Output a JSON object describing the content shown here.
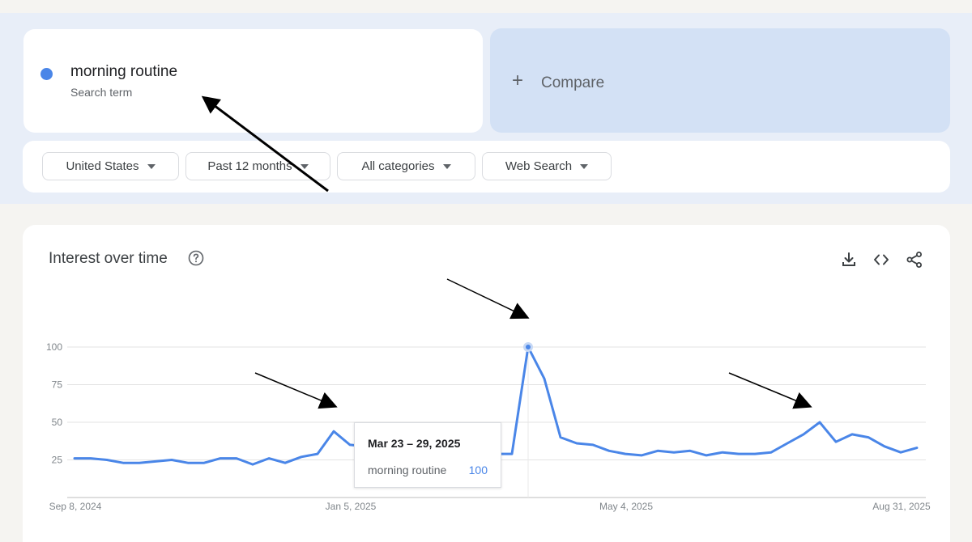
{
  "search": {
    "term": "morning routine",
    "term_type": "Search term",
    "series_color": "#4a86e8"
  },
  "compare": {
    "label": "Compare",
    "icon": "plus-icon"
  },
  "filters": {
    "region": "United States",
    "period": "Past 12 months",
    "category": "All categories",
    "property": "Web Search"
  },
  "panel": {
    "title": "Interest over time",
    "icons": [
      "help-icon",
      "download-icon",
      "embed-icon",
      "share-icon"
    ]
  },
  "tooltip": {
    "date": "Mar 23 – 29, 2025",
    "series": "morning routine",
    "value": "100"
  },
  "chart_data": {
    "type": "line",
    "ylim": [
      0,
      100
    ],
    "y_ticks": [
      100,
      75,
      50,
      25
    ],
    "x_tick_labels": [
      "Sep 8, 2024",
      "Jan 5, 2025",
      "May 4, 2025",
      "Aug 31, 2025"
    ],
    "grid": true,
    "series": [
      {
        "name": "morning routine",
        "values": [
          26,
          26,
          25,
          23,
          23,
          24,
          25,
          23,
          23,
          26,
          26,
          22,
          26,
          23,
          27,
          29,
          44,
          35,
          34,
          34,
          31,
          29,
          30,
          28,
          30,
          29,
          29,
          29,
          100,
          79,
          40,
          36,
          35,
          31,
          29,
          28,
          31,
          30,
          31,
          28,
          30,
          29,
          29,
          30,
          36,
          42,
          50,
          37,
          42,
          40,
          34,
          30,
          33
        ]
      }
    ],
    "highlight_index": 28
  }
}
